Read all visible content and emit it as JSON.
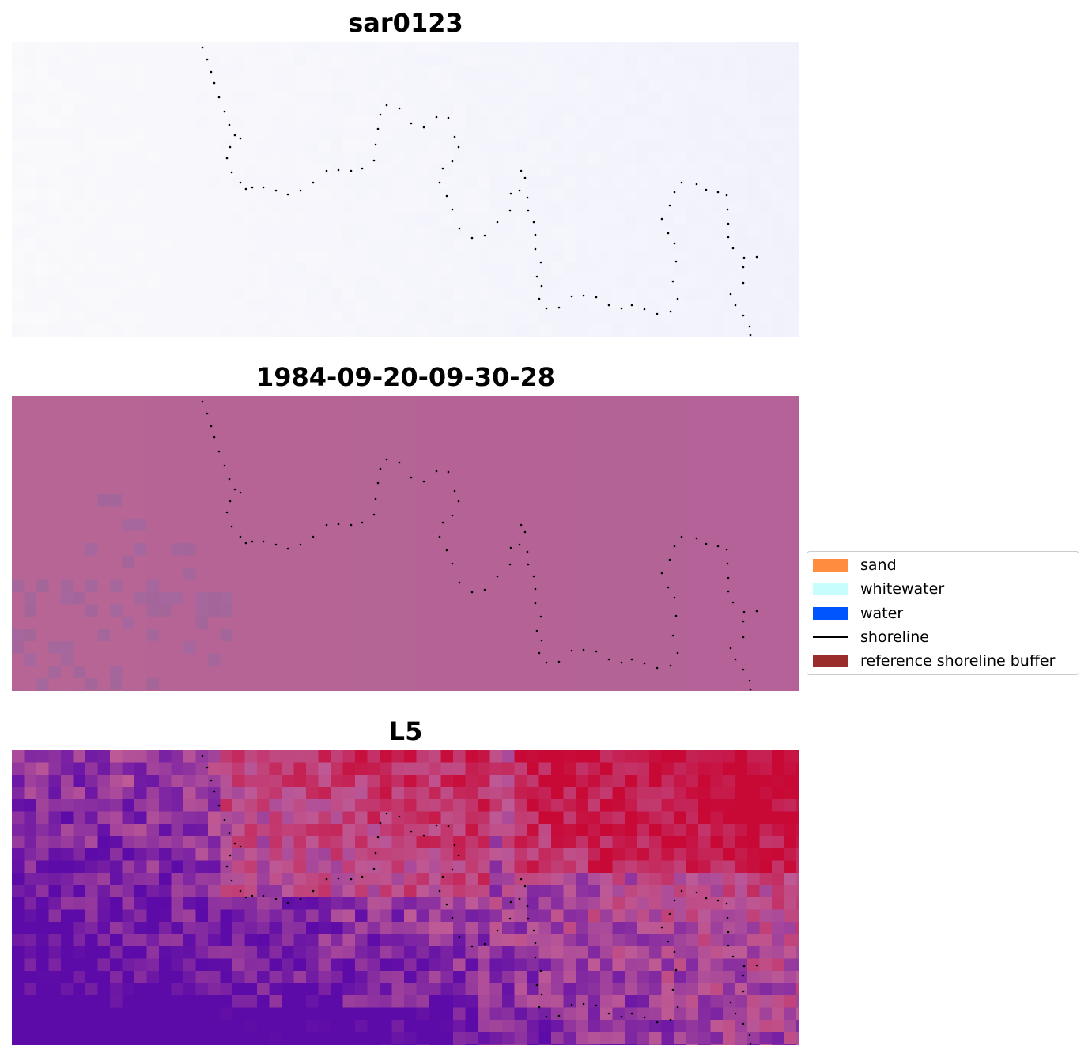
{
  "panels": [
    {
      "title": "sar0123",
      "style": "sar"
    },
    {
      "title": "1984-09-20-09-30-28",
      "style": "rgb"
    },
    {
      "title": "L5",
      "style": "index"
    }
  ],
  "legend": {
    "placement": "right",
    "items": [
      {
        "label": "sand",
        "color": "#ff8c3f",
        "kind": "patch"
      },
      {
        "label": "whitewater",
        "color": "#c8fdfd",
        "kind": "patch"
      },
      {
        "label": "water",
        "color": "#0055ff",
        "kind": "patch"
      },
      {
        "label": "shoreline",
        "color": "#000000",
        "kind": "line"
      },
      {
        "label": "reference shoreline buffer",
        "color": "#9a2c2c",
        "kind": "patch"
      }
    ]
  },
  "colors": {
    "sar_base": "#f6f6fd",
    "rgb_base": "#b76595",
    "rgb_patch": "#a46598",
    "index_low": "#5c0aa8",
    "index_high": "#c80835"
  }
}
